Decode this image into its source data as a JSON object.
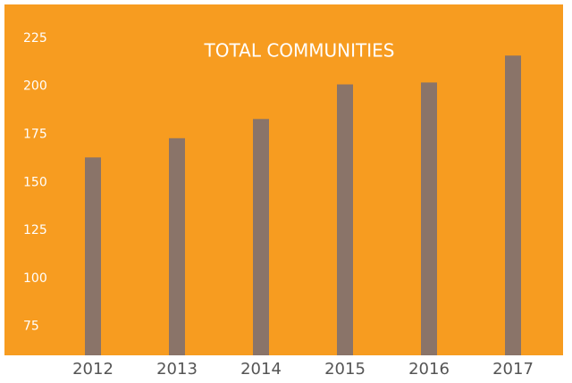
{
  "chart_data": {
    "type": "bar",
    "title": "TOTAL COMMUNITIES",
    "categories": [
      "2012",
      "2013",
      "2014",
      "2015",
      "2016",
      "2017"
    ],
    "values": [
      163,
      173,
      183,
      201,
      202,
      216
    ],
    "color": "#8a7469",
    "ylim": [
      60,
      240
    ],
    "yticks": [
      75,
      100,
      125,
      150,
      175,
      200,
      225
    ],
    "grid": false
  }
}
